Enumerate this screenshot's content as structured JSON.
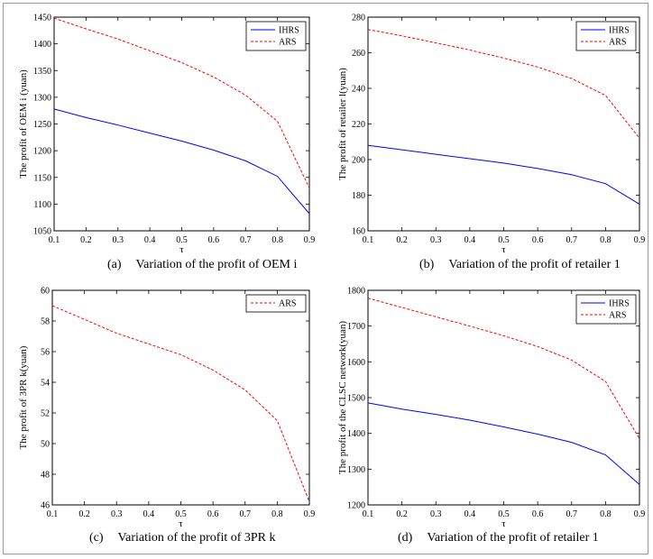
{
  "chart_data": [
    {
      "type": "line",
      "caption_label": "(a)",
      "caption_text": "Variation of the profit of OEM i",
      "xlabel": "τ",
      "ylabel": "The profit of OEM i (yuan)",
      "x": [
        0.1,
        0.2,
        0.3,
        0.4,
        0.5,
        0.6,
        0.7,
        0.8,
        0.9
      ],
      "xlim": [
        0.1,
        0.9
      ],
      "ylim": [
        1050,
        1450
      ],
      "yticks": [
        1050,
        1100,
        1150,
        1200,
        1250,
        1300,
        1350,
        1400,
        1450
      ],
      "grid": false,
      "legend_position": "top-right",
      "series": [
        {
          "name": "IHRS",
          "color": "#0000ff",
          "style": "solid",
          "values": [
            1278,
            1262,
            1248,
            1233,
            1218,
            1201,
            1181,
            1152,
            1082
          ]
        },
        {
          "name": "ARS",
          "color": "#ff0000",
          "style": "dashed",
          "values": [
            1448,
            1428,
            1409,
            1387,
            1365,
            1338,
            1304,
            1255,
            1130
          ]
        }
      ]
    },
    {
      "type": "line",
      "caption_label": "(b)",
      "caption_text": "Variation of the profit of retailer 1",
      "xlabel": "τ",
      "ylabel": "The profit of retailer l(yuan)",
      "x": [
        0.1,
        0.2,
        0.3,
        0.4,
        0.5,
        0.6,
        0.7,
        0.8,
        0.9
      ],
      "xlim": [
        0.1,
        0.9
      ],
      "ylim": [
        160,
        280
      ],
      "yticks": [
        160,
        180,
        200,
        220,
        240,
        260,
        280
      ],
      "grid": false,
      "legend_position": "top-right",
      "series": [
        {
          "name": "IHRS",
          "color": "#0000ff",
          "style": "solid",
          "values": [
            208,
            205.5,
            203,
            200.5,
            198,
            195,
            191.5,
            186.5,
            175
          ]
        },
        {
          "name": "ARS",
          "color": "#ff0000",
          "style": "dashed",
          "values": [
            273,
            269.5,
            265.5,
            261.5,
            257,
            252,
            245.5,
            236,
            212
          ]
        }
      ]
    },
    {
      "type": "line",
      "caption_label": "(c)",
      "caption_text": "Variation of the profit of 3PR k",
      "xlabel": "τ",
      "ylabel": "The profit of 3PR k(yuan)",
      "x": [
        0.1,
        0.2,
        0.3,
        0.4,
        0.5,
        0.6,
        0.7,
        0.8,
        0.9
      ],
      "xlim": [
        0.1,
        0.9
      ],
      "ylim": [
        46,
        60
      ],
      "yticks": [
        46,
        48,
        50,
        52,
        54,
        56,
        58,
        60
      ],
      "grid": false,
      "legend_position": "top-right",
      "series": [
        {
          "name": "ARS",
          "color": "#ff0000",
          "style": "dashed",
          "values": [
            59,
            58.1,
            57.2,
            56.5,
            55.8,
            54.8,
            53.5,
            51.5,
            46.2
          ]
        }
      ]
    },
    {
      "type": "line",
      "caption_label": "(d)",
      "caption_text": "Variation of the profit of retailer 1",
      "xlabel": "τ",
      "ylabel": "The profit of the CLSC network(yuan)",
      "x": [
        0.1,
        0.2,
        0.3,
        0.4,
        0.5,
        0.6,
        0.7,
        0.8,
        0.9
      ],
      "xlim": [
        0.1,
        0.9
      ],
      "ylim": [
        1200,
        1800
      ],
      "yticks": [
        1200,
        1300,
        1400,
        1500,
        1600,
        1700,
        1800
      ],
      "grid": false,
      "legend_position": "top-right",
      "series": [
        {
          "name": "IHRS",
          "color": "#0000ff",
          "style": "solid",
          "values": [
            1485,
            1468,
            1453,
            1437,
            1418,
            1398,
            1375,
            1340,
            1257
          ]
        },
        {
          "name": "ARS",
          "color": "#ff0000",
          "style": "dashed",
          "values": [
            1778,
            1752,
            1726,
            1700,
            1673,
            1643,
            1605,
            1545,
            1385
          ]
        }
      ]
    }
  ]
}
